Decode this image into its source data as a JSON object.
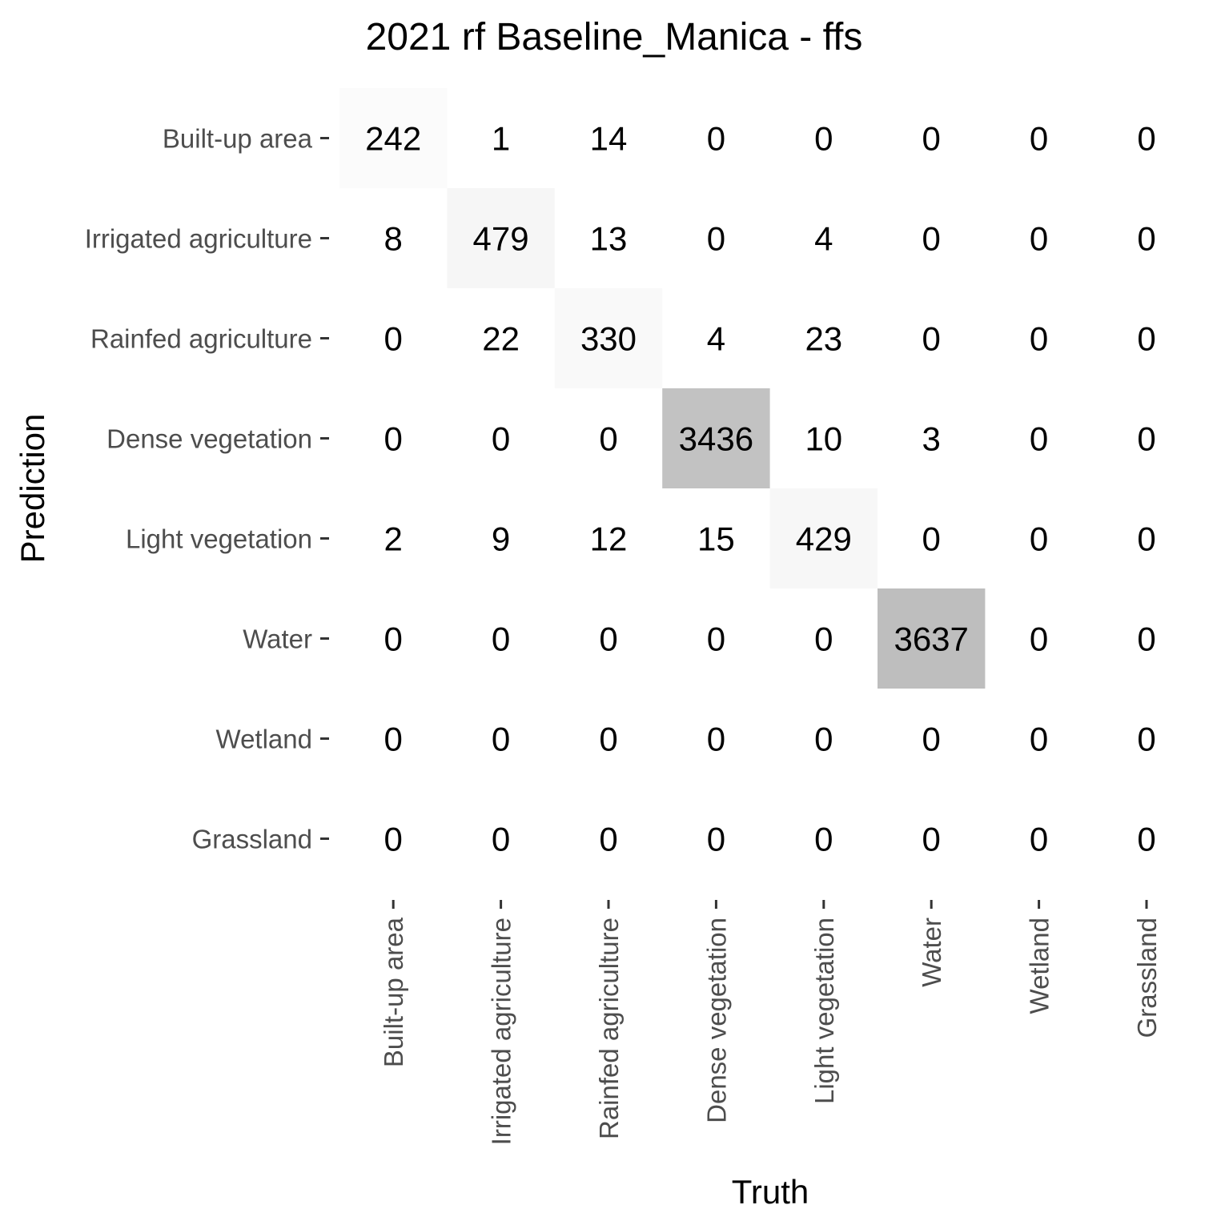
{
  "chart_data": {
    "type": "heatmap",
    "title": "2021 rf Baseline_Manica - ffs",
    "xlabel": "Truth",
    "ylabel": "Prediction",
    "x_categories": [
      "Built-up area",
      "Irrigated agriculture",
      "Rainfed agriculture",
      "Dense vegetation",
      "Light vegetation",
      "Water",
      "Wetland",
      "Grassland"
    ],
    "y_categories": [
      "Built-up area",
      "Irrigated agriculture",
      "Rainfed agriculture",
      "Dense vegetation",
      "Light vegetation",
      "Water",
      "Wetland",
      "Grassland"
    ],
    "values": [
      [
        242,
        1,
        14,
        0,
        0,
        0,
        0,
        0
      ],
      [
        8,
        479,
        13,
        0,
        4,
        0,
        0,
        0
      ],
      [
        0,
        22,
        330,
        4,
        23,
        0,
        0,
        0
      ],
      [
        0,
        0,
        0,
        3436,
        10,
        3,
        0,
        0
      ],
      [
        2,
        9,
        12,
        15,
        429,
        0,
        0,
        0
      ],
      [
        0,
        0,
        0,
        0,
        0,
        3637,
        0,
        0
      ],
      [
        0,
        0,
        0,
        0,
        0,
        0,
        0,
        0
      ],
      [
        0,
        0,
        0,
        0,
        0,
        0,
        0,
        0
      ]
    ],
    "highlight": "diagonal",
    "color_low": "#ffffff",
    "color_high": "#bebebe",
    "grid": false,
    "legend": "none"
  }
}
